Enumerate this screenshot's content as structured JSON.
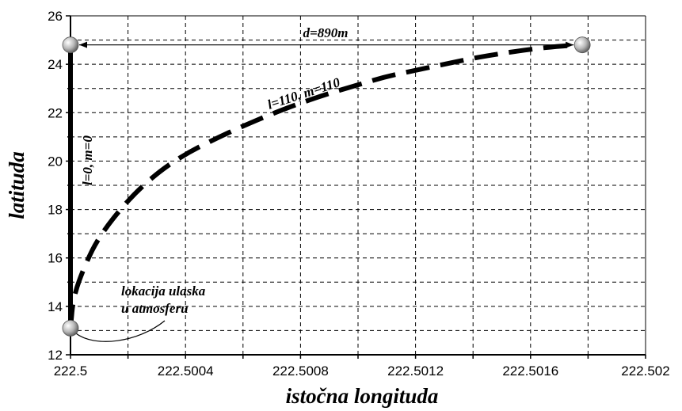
{
  "chart_data": {
    "type": "line",
    "title": "",
    "xlabel": "istočna longituda",
    "ylabel": "latituda",
    "xlim": [
      222.5,
      222.502
    ],
    "ylim": [
      12,
      26
    ],
    "grid": true,
    "x_ticks": [
      222.5,
      222.5004,
      222.5008,
      222.5012,
      222.5016,
      222.502
    ],
    "x_tick_labels": [
      "222.5",
      "222.5004",
      "222.5008",
      "222.5012",
      "222.5016",
      "222.502"
    ],
    "y_ticks": [
      12,
      14,
      16,
      18,
      20,
      22,
      24,
      26
    ],
    "y_tick_labels": [
      "12",
      "14",
      "16",
      "18",
      "20",
      "22",
      "24",
      "26"
    ],
    "series": [
      {
        "name": "l=0, m=0",
        "style": "solid",
        "color": "#000000",
        "x": [
          222.5,
          222.5
        ],
        "y": [
          13.1,
          24.8
        ]
      },
      {
        "name": "l=110, m=110",
        "style": "dashed",
        "color": "#000000",
        "x": [
          222.5,
          222.50001,
          222.50005,
          222.5001,
          222.5002,
          222.5003,
          222.5004,
          222.5005,
          222.5006,
          222.5007,
          222.5008,
          222.5009,
          222.501,
          222.5011,
          222.5012,
          222.5013,
          222.5014,
          222.5015,
          222.5016,
          222.5017,
          222.50178
        ],
        "y": [
          13.1,
          14.4,
          15.7,
          16.9,
          18.4,
          19.5,
          20.3,
          20.9,
          21.45,
          21.95,
          22.4,
          22.8,
          23.15,
          23.5,
          23.75,
          24.0,
          24.25,
          24.45,
          24.62,
          24.75,
          24.8
        ]
      }
    ],
    "points": [
      {
        "x": 222.5,
        "y": 24.8
      },
      {
        "x": 222.50178,
        "y": 24.8
      },
      {
        "x": 222.5,
        "y": 13.1
      }
    ],
    "annotations": [
      {
        "text": "d=890m",
        "type": "double-arrow",
        "x1": 222.5,
        "x2": 222.50178,
        "y": 24.8
      },
      {
        "text": "l=110, m=110"
      },
      {
        "text": "l=0, m=0"
      },
      {
        "text_lines": [
          "lokacija ulaska",
          "u atmosferu"
        ]
      }
    ]
  }
}
